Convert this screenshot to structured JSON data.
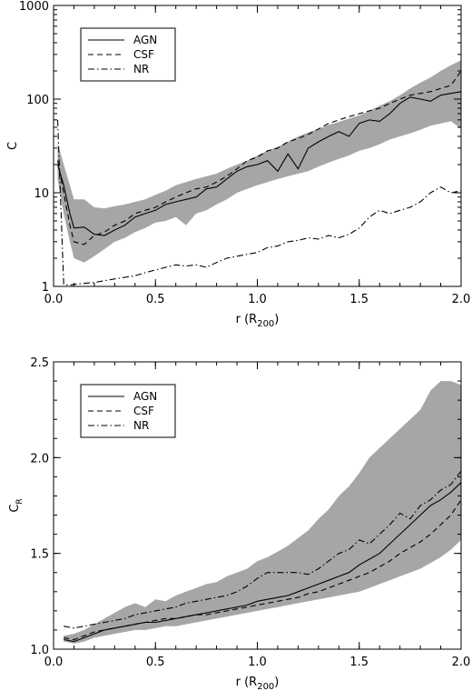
{
  "chart_data": [
    {
      "type": "line",
      "xlabel": "r (R",
      "xlabel_sub": "200",
      "xlabel_close": ")",
      "ylabel": "C",
      "xlim": [
        0.0,
        2.0
      ],
      "ylim": [
        1,
        1000
      ],
      "yscale": "log",
      "xticks": [
        0.0,
        0.5,
        1.0,
        1.5,
        2.0
      ],
      "xtick_labels": [
        "0.0",
        "0.5",
        "1.0",
        "1.5",
        "2.0"
      ],
      "yticks": [
        1,
        10,
        100,
        1000
      ],
      "ytick_labels": [
        "1",
        "10",
        "100",
        "1000"
      ],
      "legend_position": "top-left",
      "x": [
        0.02,
        0.05,
        0.08,
        0.1,
        0.15,
        0.2,
        0.25,
        0.3,
        0.35,
        0.4,
        0.45,
        0.5,
        0.55,
        0.6,
        0.65,
        0.7,
        0.75,
        0.8,
        0.85,
        0.9,
        0.95,
        1.0,
        1.05,
        1.1,
        1.15,
        1.2,
        1.25,
        1.3,
        1.35,
        1.4,
        1.45,
        1.5,
        1.55,
        1.6,
        1.65,
        1.7,
        1.75,
        1.8,
        1.85,
        1.9,
        1.95,
        2.0
      ],
      "band": {
        "lower": [
          14,
          6,
          3,
          2,
          1.8,
          2.1,
          2.5,
          3,
          3.3,
          3.8,
          4.2,
          4.8,
          5,
          5.5,
          4.5,
          6,
          6.5,
          7.5,
          8.5,
          10,
          11,
          12,
          13,
          14,
          15,
          16,
          17,
          19,
          21,
          23,
          25,
          28,
          30,
          33,
          37,
          40,
          43,
          47,
          52,
          55,
          58,
          48
        ],
        "upper": [
          34,
          20,
          12,
          8.5,
          8.5,
          7,
          6.8,
          7.2,
          7.5,
          8,
          8.5,
          9.5,
          10.5,
          12,
          13,
          14,
          15,
          16,
          18,
          20,
          22,
          25,
          28,
          31,
          35,
          40,
          44,
          48,
          53,
          57,
          62,
          67,
          75,
          85,
          95,
          110,
          130,
          150,
          170,
          200,
          230,
          260
        ]
      },
      "series": [
        {
          "name": "AGN",
          "dash": "solid",
          "values": [
            20,
            12,
            6,
            4.2,
            4.3,
            3.6,
            3.5,
            4,
            4.5,
            5.5,
            6,
            6.5,
            7.5,
            8,
            8.5,
            9,
            11,
            11.5,
            14,
            17,
            19,
            20,
            22,
            17,
            26,
            18,
            30,
            35,
            40,
            45,
            40,
            55,
            60,
            58,
            70,
            90,
            105,
            100,
            95,
            110,
            115,
            120
          ]
        },
        {
          "name": "CSF",
          "dash": "dashed",
          "values": [
            22,
            10,
            4.5,
            3,
            2.8,
            3.5,
            3.8,
            4.5,
            5,
            6,
            6.5,
            7,
            8,
            9,
            10,
            11,
            11.5,
            13,
            15,
            18,
            22,
            24,
            28,
            30,
            35,
            38,
            42,
            48,
            55,
            60,
            65,
            70,
            75,
            80,
            90,
            100,
            110,
            115,
            120,
            130,
            140,
            200
          ]
        },
        {
          "name": "NR",
          "dash": "dashdot",
          "values": [
            60,
            1.05,
            1.03,
            1.05,
            1.08,
            1.1,
            1.15,
            1.2,
            1.25,
            1.3,
            1.4,
            1.5,
            1.6,
            1.7,
            1.65,
            1.7,
            1.6,
            1.8,
            2,
            2.1,
            2.2,
            2.3,
            2.6,
            2.7,
            3,
            3.1,
            3.3,
            3.2,
            3.5,
            3.3,
            3.6,
            4.2,
            5.5,
            6.5,
            6,
            6.5,
            7,
            8,
            10,
            11.5,
            10,
            10.5
          ]
        }
      ]
    },
    {
      "type": "line",
      "xlabel": "r (R",
      "xlabel_sub": "200",
      "xlabel_close": ")",
      "ylabel": "C",
      "ylabel_sub": "R",
      "xlim": [
        0.0,
        2.0
      ],
      "ylim": [
        1.0,
        2.5
      ],
      "xticks": [
        0.0,
        0.5,
        1.0,
        1.5,
        2.0
      ],
      "xtick_labels": [
        "0.0",
        "0.5",
        "1.0",
        "1.5",
        "2.0"
      ],
      "yticks": [
        1.0,
        1.5,
        2.0,
        2.5
      ],
      "ytick_labels": [
        "1.0",
        "1.5",
        "2.0",
        "2.5"
      ],
      "legend_position": "top-left",
      "x": [
        0.05,
        0.1,
        0.15,
        0.2,
        0.25,
        0.3,
        0.35,
        0.4,
        0.45,
        0.5,
        0.55,
        0.6,
        0.65,
        0.7,
        0.75,
        0.8,
        0.85,
        0.9,
        0.95,
        1.0,
        1.05,
        1.1,
        1.15,
        1.2,
        1.25,
        1.3,
        1.35,
        1.4,
        1.45,
        1.5,
        1.55,
        1.6,
        1.65,
        1.7,
        1.75,
        1.8,
        1.85,
        1.9,
        1.95,
        2.0
      ],
      "band": {
        "lower": [
          1.04,
          1.03,
          1.04,
          1.06,
          1.07,
          1.08,
          1.09,
          1.1,
          1.1,
          1.11,
          1.12,
          1.12,
          1.13,
          1.14,
          1.15,
          1.16,
          1.17,
          1.18,
          1.19,
          1.2,
          1.21,
          1.22,
          1.23,
          1.24,
          1.25,
          1.26,
          1.27,
          1.28,
          1.29,
          1.3,
          1.32,
          1.34,
          1.36,
          1.38,
          1.4,
          1.42,
          1.45,
          1.48,
          1.52,
          1.57
        ],
        "upper": [
          1.07,
          1.08,
          1.1,
          1.13,
          1.16,
          1.19,
          1.22,
          1.24,
          1.22,
          1.26,
          1.25,
          1.28,
          1.3,
          1.32,
          1.34,
          1.35,
          1.38,
          1.4,
          1.42,
          1.46,
          1.48,
          1.51,
          1.54,
          1.58,
          1.62,
          1.68,
          1.73,
          1.8,
          1.85,
          1.92,
          2.0,
          2.05,
          2.1,
          2.15,
          2.2,
          2.25,
          2.35,
          2.4,
          2.4,
          2.38
        ]
      },
      "series": [
        {
          "name": "AGN",
          "dash": "solid",
          "values": [
            1.05,
            1.04,
            1.06,
            1.08,
            1.1,
            1.11,
            1.12,
            1.13,
            1.14,
            1.14,
            1.15,
            1.16,
            1.17,
            1.18,
            1.19,
            1.2,
            1.21,
            1.22,
            1.23,
            1.25,
            1.26,
            1.27,
            1.28,
            1.3,
            1.32,
            1.34,
            1.36,
            1.38,
            1.4,
            1.44,
            1.47,
            1.5,
            1.55,
            1.6,
            1.65,
            1.7,
            1.75,
            1.78,
            1.82,
            1.87
          ]
        },
        {
          "name": "CSF",
          "dash": "dashed",
          "values": [
            1.06,
            1.05,
            1.07,
            1.09,
            1.1,
            1.11,
            1.12,
            1.13,
            1.14,
            1.15,
            1.16,
            1.16,
            1.17,
            1.18,
            1.18,
            1.19,
            1.2,
            1.21,
            1.22,
            1.23,
            1.24,
            1.25,
            1.26,
            1.27,
            1.29,
            1.3,
            1.32,
            1.34,
            1.36,
            1.38,
            1.4,
            1.43,
            1.46,
            1.5,
            1.53,
            1.56,
            1.6,
            1.65,
            1.7,
            1.78
          ]
        },
        {
          "name": "NR",
          "dash": "dashdot",
          "values": [
            1.12,
            1.11,
            1.12,
            1.13,
            1.14,
            1.15,
            1.16,
            1.18,
            1.19,
            1.2,
            1.21,
            1.22,
            1.24,
            1.25,
            1.26,
            1.27,
            1.28,
            1.3,
            1.33,
            1.37,
            1.4,
            1.4,
            1.4,
            1.4,
            1.39,
            1.42,
            1.46,
            1.5,
            1.52,
            1.57,
            1.55,
            1.6,
            1.65,
            1.71,
            1.68,
            1.75,
            1.78,
            1.83,
            1.86,
            1.93
          ]
        }
      ]
    }
  ]
}
